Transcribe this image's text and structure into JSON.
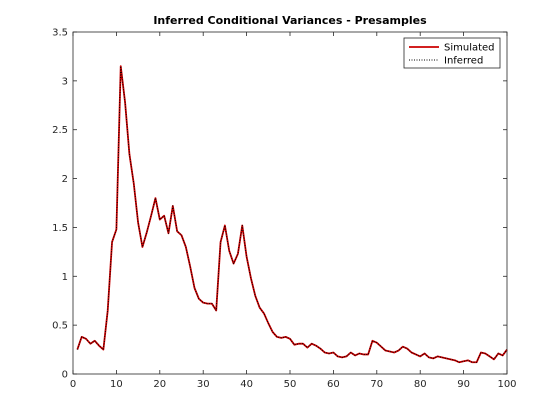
{
  "chart_data": {
    "type": "line",
    "title": "Inferred Conditional Variances - Presamples",
    "xlabel": "",
    "ylabel": "",
    "xlim": [
      0,
      100
    ],
    "ylim": [
      0,
      3.5
    ],
    "xticks": [
      0,
      10,
      20,
      30,
      40,
      50,
      60,
      70,
      80,
      90,
      100
    ],
    "yticks": [
      0,
      0.5,
      1,
      1.5,
      2,
      2.5,
      3,
      3.5
    ],
    "xtick_labels": [
      "0",
      "10",
      "20",
      "30",
      "40",
      "50",
      "60",
      "70",
      "80",
      "90",
      "100"
    ],
    "ytick_labels": [
      "0",
      "0.5",
      "1",
      "1.5",
      "2",
      "2.5",
      "3",
      "3.5"
    ],
    "grid": false,
    "legend_position": "top-right",
    "x": [
      1,
      2,
      3,
      4,
      5,
      6,
      7,
      8,
      9,
      10,
      11,
      12,
      13,
      14,
      15,
      16,
      17,
      18,
      19,
      20,
      21,
      22,
      23,
      24,
      25,
      26,
      27,
      28,
      29,
      30,
      31,
      32,
      33,
      34,
      35,
      36,
      37,
      38,
      39,
      40,
      41,
      42,
      43,
      44,
      45,
      46,
      47,
      48,
      49,
      50,
      51,
      52,
      53,
      54,
      55,
      56,
      57,
      58,
      59,
      60,
      61,
      62,
      63,
      64,
      65,
      66,
      67,
      68,
      69,
      70,
      71,
      72,
      73,
      74,
      75,
      76,
      77,
      78,
      79,
      80,
      81,
      82,
      83,
      84,
      85,
      86,
      87,
      88,
      89,
      90,
      91,
      92,
      93,
      94,
      95,
      96,
      97,
      98,
      99,
      100
    ],
    "series": [
      {
        "name": "Simulated",
        "color": "#cc0000",
        "style": "solid",
        "values": [
          0.25,
          0.38,
          0.36,
          0.31,
          0.34,
          0.29,
          0.25,
          0.65,
          1.35,
          1.48,
          3.15,
          2.78,
          2.25,
          1.95,
          1.55,
          1.3,
          1.45,
          1.62,
          1.8,
          1.58,
          1.62,
          1.44,
          1.72,
          1.46,
          1.42,
          1.3,
          1.1,
          0.88,
          0.77,
          0.73,
          0.72,
          0.72,
          0.65,
          1.35,
          1.52,
          1.26,
          1.13,
          1.23,
          1.52,
          1.2,
          0.98,
          0.8,
          0.68,
          0.62,
          0.52,
          0.43,
          0.38,
          0.37,
          0.38,
          0.36,
          0.3,
          0.31,
          0.31,
          0.27,
          0.31,
          0.29,
          0.26,
          0.22,
          0.21,
          0.22,
          0.18,
          0.17,
          0.18,
          0.22,
          0.19,
          0.21,
          0.2,
          0.2,
          0.34,
          0.32,
          0.28,
          0.24,
          0.23,
          0.22,
          0.24,
          0.28,
          0.26,
          0.22,
          0.2,
          0.18,
          0.21,
          0.17,
          0.16,
          0.18,
          0.17,
          0.16,
          0.15,
          0.14,
          0.12,
          0.13,
          0.14,
          0.12,
          0.12,
          0.22,
          0.21,
          0.18,
          0.15,
          0.21,
          0.19,
          0.25
        ]
      },
      {
        "name": "Inferred",
        "color": "#000000",
        "style": "dotted",
        "values": [
          0.25,
          0.38,
          0.36,
          0.31,
          0.34,
          0.29,
          0.25,
          0.65,
          1.35,
          1.48,
          3.15,
          2.78,
          2.25,
          1.95,
          1.55,
          1.3,
          1.45,
          1.62,
          1.8,
          1.58,
          1.62,
          1.44,
          1.72,
          1.46,
          1.42,
          1.3,
          1.1,
          0.88,
          0.77,
          0.73,
          0.72,
          0.72,
          0.65,
          1.35,
          1.52,
          1.26,
          1.13,
          1.23,
          1.52,
          1.2,
          0.98,
          0.8,
          0.68,
          0.62,
          0.52,
          0.43,
          0.38,
          0.37,
          0.38,
          0.36,
          0.3,
          0.31,
          0.31,
          0.27,
          0.31,
          0.29,
          0.26,
          0.22,
          0.21,
          0.22,
          0.18,
          0.17,
          0.18,
          0.22,
          0.19,
          0.21,
          0.2,
          0.2,
          0.34,
          0.32,
          0.28,
          0.24,
          0.23,
          0.22,
          0.24,
          0.28,
          0.26,
          0.22,
          0.2,
          0.18,
          0.21,
          0.17,
          0.16,
          0.18,
          0.17,
          0.16,
          0.15,
          0.14,
          0.12,
          0.13,
          0.14,
          0.12,
          0.12,
          0.22,
          0.21,
          0.18,
          0.15,
          0.21,
          0.19,
          0.25
        ]
      }
    ]
  }
}
